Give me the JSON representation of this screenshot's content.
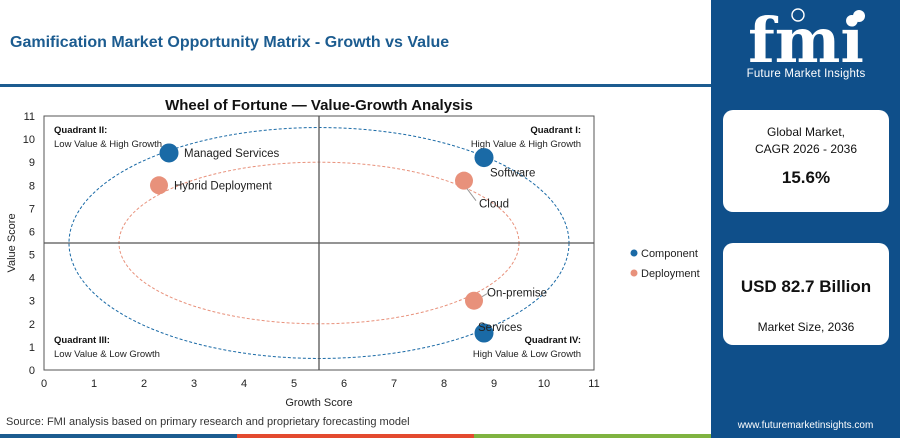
{
  "header": {
    "title": "Gamification Market Opportunity Matrix - Growth vs Value"
  },
  "source": "Source: FMI analysis based on primary research and proprietary forecasting model",
  "brand": {
    "logo_text": "fmi",
    "tagline": "Future Market Insights",
    "website": "www.futuremarketinsights.com",
    "panel_color": "#0f4f8a",
    "accent": "#1c5c90"
  },
  "cards": {
    "cagr_label_1": "Global Market,",
    "cagr_label_2": "CAGR 2026 - 2036",
    "cagr_value": "15.6%",
    "size_value": "USD 82.7 Billion",
    "size_label": "Market Size, 2036"
  },
  "chart_data": {
    "type": "scatter",
    "title": "Wheel of Fortune — Value-Growth Analysis",
    "xlabel": "Growth Score",
    "ylabel": "Value Score",
    "xlim": [
      0,
      11
    ],
    "ylim": [
      0,
      11
    ],
    "xticks": [
      0,
      1,
      2,
      3,
      4,
      5,
      6,
      7,
      8,
      9,
      10,
      11
    ],
    "yticks": [
      0,
      1,
      2,
      3,
      4,
      5,
      6,
      7,
      8,
      9,
      10,
      11
    ],
    "divider_x": 5.5,
    "divider_y": 5.5,
    "grid": false,
    "legend_position": "right",
    "quadrants": [
      {
        "title": "Quadrant I:",
        "subtitle": "High Value & High Growth",
        "position": "top-right"
      },
      {
        "title": "Quadrant II:",
        "subtitle": "Low Value & High Growth",
        "position": "top-left"
      },
      {
        "title": "Quadrant III:",
        "subtitle": "Low Value & Low Growth",
        "position": "bottom-left"
      },
      {
        "title": "Quadrant IV:",
        "subtitle": "High Value & Low Growth",
        "position": "bottom-right"
      }
    ],
    "series": [
      {
        "name": "Component",
        "color": "#1a6aa6",
        "points": [
          {
            "label": "Managed Services",
            "x": 2.5,
            "y": 9.4
          },
          {
            "label": "Software",
            "x": 8.8,
            "y": 9.2
          },
          {
            "label": "Services",
            "x": 8.8,
            "y": 1.6
          }
        ]
      },
      {
        "name": "Deployment",
        "color": "#e8917b",
        "points": [
          {
            "label": "Hybrid Deployment",
            "x": 2.3,
            "y": 8.0
          },
          {
            "label": "Cloud",
            "x": 8.4,
            "y": 8.2
          },
          {
            "label": "On-premise",
            "x": 8.6,
            "y": 3.0
          }
        ]
      }
    ],
    "ellipses": [
      {
        "series": "Component",
        "cx": 5.5,
        "cy": 5.5,
        "rx": 5.0,
        "ry": 5.0,
        "color": "#1a6aa6"
      },
      {
        "series": "Deployment",
        "cx": 5.5,
        "cy": 5.5,
        "rx": 4.0,
        "ry": 3.5,
        "color": "#e8917b"
      }
    ]
  }
}
